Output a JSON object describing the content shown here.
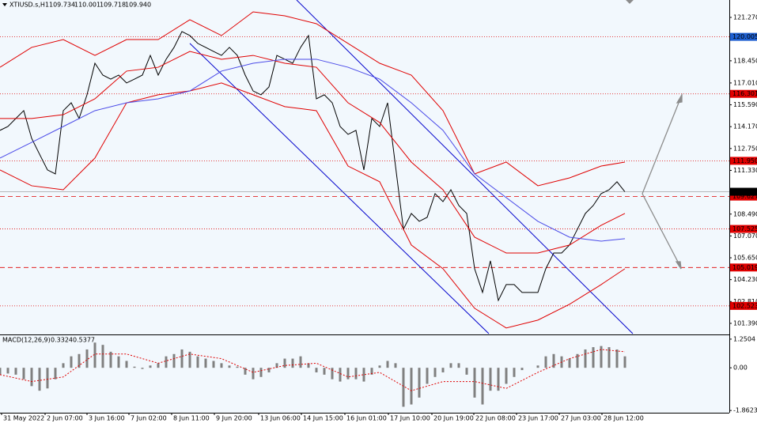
{
  "chart_data": {
    "type": "line",
    "title": "XTIUSD.s,H1",
    "quote": [
      "109.734",
      "110.001",
      "109.718",
      "109.940"
    ],
    "x": [
      0,
      1,
      2,
      3,
      4,
      5,
      6,
      7,
      8,
      9,
      10,
      11,
      12,
      13,
      14,
      15,
      16,
      17,
      18,
      19,
      20,
      21,
      22,
      23,
      24,
      25,
      26,
      27,
      28,
      29,
      30,
      31,
      32,
      33,
      34,
      35,
      36,
      37,
      38,
      39,
      40,
      41,
      42,
      43,
      44,
      45,
      46,
      47,
      48,
      49,
      50,
      51,
      52,
      53,
      54,
      55,
      56,
      57,
      58,
      59,
      60,
      61,
      62,
      63,
      64,
      65,
      66,
      67,
      68,
      69,
      70,
      71,
      72,
      73,
      74,
      75,
      76,
      77,
      78,
      79
    ],
    "xlim": [
      0,
      92.2
    ],
    "xticks": [
      {
        "value": 0.2,
        "label": "31 May 2022"
      },
      {
        "value": 5.7,
        "label": "2 Jun 07:00"
      },
      {
        "value": 11.0,
        "label": "3 Jun 16:00"
      },
      {
        "value": 16.3,
        "label": "7 Jun 02:00"
      },
      {
        "value": 21.7,
        "label": "8 Jun 11:00"
      },
      {
        "value": 27.1,
        "label": "9 Jun 20:00"
      },
      {
        "value": 32.7,
        "label": "13 Jun 06:00"
      },
      {
        "value": 38.1,
        "label": "14 Jun 15:00"
      },
      {
        "value": 43.6,
        "label": "16 Jun 01:00"
      },
      {
        "value": 49.1,
        "label": "17 Jun 10:00"
      },
      {
        "value": 54.6,
        "label": "20 Jun 19:00"
      },
      {
        "value": 59.9,
        "label": "22 Jun 08:00"
      },
      {
        "value": 65.3,
        "label": "23 Jun 17:00"
      },
      {
        "value": 70.7,
        "label": "27 Jun 03:00"
      },
      {
        "value": 76.1,
        "label": "28 Jun 12:00"
      }
    ],
    "ylim": [
      100.72,
      122.4
    ],
    "yticks": [
      {
        "value": 121.27,
        "label": "121.270"
      },
      {
        "value": 118.45,
        "label": "118.450"
      },
      {
        "value": 117.01,
        "label": "117.010"
      },
      {
        "value": 115.59,
        "label": "115.590"
      },
      {
        "value": 114.17,
        "label": "114.170"
      },
      {
        "value": 112.75,
        "label": "112.750"
      },
      {
        "value": 111.33,
        "label": "111.330"
      },
      {
        "value": 108.49,
        "label": "108.490"
      },
      {
        "value": 107.07,
        "label": "107.070"
      },
      {
        "value": 105.65,
        "label": "105.650"
      },
      {
        "value": 104.23,
        "label": "104.230"
      },
      {
        "value": 102.81,
        "label": "102.810"
      },
      {
        "value": 101.39,
        "label": "101.390"
      }
    ],
    "series": [
      {
        "color": "#000000",
        "values": [
          113.93,
          114.18,
          114.7,
          115.21,
          113.41,
          112.38,
          111.36,
          111.1,
          115.21,
          115.72,
          114.7,
          116.24,
          118.29,
          117.52,
          117.26,
          117.52,
          117.01,
          117.26,
          117.52,
          118.8,
          117.52,
          118.55,
          119.32,
          120.35,
          120.09,
          119.58,
          119.32,
          119.06,
          118.8,
          119.32,
          118.8,
          117.52,
          116.49,
          116.24,
          116.75,
          118.8,
          118.55,
          118.29,
          119.32,
          120.09,
          115.98,
          116.24,
          115.72,
          114.18,
          113.67,
          113.93,
          111.36,
          114.7,
          114.18,
          115.72,
          111.61,
          107.51,
          108.53,
          108.02,
          108.28,
          109.82,
          109.3,
          110.07,
          109.05,
          108.53,
          104.94,
          103.4,
          105.45,
          102.88,
          103.91,
          103.91,
          103.4,
          103.4,
          103.4,
          104.94,
          105.96,
          105.96,
          106.48,
          107.51,
          108.53,
          109.05,
          109.82,
          110.07,
          110.59,
          109.94
        ]
      },
      {
        "color": "#e00000",
        "x": [
          0,
          4,
          8,
          12,
          16,
          20,
          24,
          28,
          32,
          36,
          40,
          44,
          48,
          52,
          56,
          60,
          64,
          68,
          72,
          76,
          79
        ],
        "values": [
          118.03,
          119.32,
          119.83,
          118.8,
          119.83,
          119.83,
          121.12,
          120.09,
          121.63,
          121.37,
          120.86,
          119.58,
          118.29,
          117.52,
          115.21,
          111.1,
          111.87,
          110.33,
          110.84,
          111.61,
          111.87
        ]
      },
      {
        "color": "#e00000",
        "x": [
          0,
          4,
          8,
          12,
          16,
          20,
          24,
          28,
          32,
          36,
          40,
          44,
          48,
          52,
          56,
          60,
          64,
          68,
          72,
          76,
          79
        ],
        "values": [
          114.7,
          114.7,
          114.95,
          115.98,
          117.78,
          118.03,
          119.06,
          118.55,
          118.8,
          118.29,
          118.03,
          115.72,
          114.44,
          111.87,
          110.07,
          106.99,
          105.96,
          105.96,
          106.48,
          107.76,
          108.53
        ]
      },
      {
        "color": "#e00000",
        "x": [
          0,
          4,
          8,
          12,
          16,
          20,
          24,
          28,
          32,
          36,
          40,
          44,
          48,
          52,
          56,
          60,
          64,
          68,
          72,
          76,
          79
        ],
        "values": [
          111.36,
          110.33,
          110.07,
          112.13,
          115.72,
          116.24,
          116.49,
          117.01,
          116.24,
          115.47,
          115.21,
          111.61,
          110.59,
          106.48,
          104.94,
          102.37,
          101.09,
          101.6,
          102.63,
          103.91,
          104.94
        ]
      },
      {
        "color": "#4a4ae8",
        "x": [
          0,
          4,
          8,
          12,
          16,
          20,
          24,
          28,
          32,
          36,
          40,
          44,
          48,
          52,
          56,
          60,
          64,
          68,
          72,
          76,
          79
        ],
        "values": [
          112.13,
          113.15,
          114.18,
          115.21,
          115.72,
          115.98,
          116.49,
          117.78,
          118.29,
          118.55,
          118.55,
          118.03,
          117.26,
          115.72,
          113.93,
          111.1,
          109.56,
          108.02,
          106.99,
          106.73,
          106.89
        ]
      }
    ],
    "trendlines": [
      {
        "color": "#0000cc",
        "x": [
          37.5,
          80
        ],
        "values": [
          122.4,
          100.72
        ]
      },
      {
        "color": "#0000cc",
        "x": [
          24,
          61.8
        ],
        "values": [
          119.58,
          100.72
        ]
      }
    ],
    "levels": [
      {
        "value": 120.005,
        "label": "120.005",
        "style": "dotted",
        "color": "#e00000",
        "label_color": "#1e5fd0"
      },
      {
        "value": 116.301,
        "label": "116.301",
        "style": "dotted",
        "color": "#e00000",
        "label_color": "#e00000"
      },
      {
        "value": 111.95,
        "label": "111.950",
        "style": "dotted",
        "color": "#e00000",
        "label_color": "#e00000"
      },
      {
        "value": 109.627,
        "label": "109.627",
        "style": "dashed",
        "color": "#e00000",
        "label_color": "#e00000"
      },
      {
        "value": 107.525,
        "label": "107.525",
        "style": "dotted",
        "color": "#e00000",
        "label_color": "#e00000"
      },
      {
        "value": 105.019,
        "label": "105.019",
        "style": "dashed",
        "color": "#e00000",
        "label_color": "#e00000"
      },
      {
        "value": 102.523,
        "label": "102.523",
        "style": "dotted",
        "color": "#e00000",
        "label_color": "#e00000"
      }
    ],
    "current": {
      "value": 109.94,
      "label": "109.940",
      "color": "#000000"
    },
    "macd": {
      "title": "MACD(12,26,9)",
      "readings": [
        0.3324,
        0.5377
      ],
      "ylim": [
        -1.96,
        1.42
      ],
      "yticks": [
        1.2504,
        {
          "value": 0,
          "label": "0.00"
        },
        -1.8623
      ],
      "histogram": {
        "color": "#808080",
        "values": [
          -0.3,
          -0.25,
          -0.3,
          -0.5,
          -0.8,
          -1.0,
          -0.9,
          -0.5,
          0.2,
          0.5,
          0.6,
          0.8,
          1.1,
          1.0,
          0.7,
          0.5,
          0.3,
          0.05,
          -0.05,
          0.1,
          0.2,
          0.5,
          0.6,
          0.8,
          0.7,
          0.5,
          0.4,
          0.3,
          0.2,
          0.1,
          0.05,
          -0.3,
          -0.5,
          -0.4,
          -0.2,
          0.2,
          0.4,
          0.4,
          0.5,
          0.2,
          -0.2,
          -0.3,
          -0.5,
          -0.6,
          -0.5,
          -0.5,
          -0.6,
          -0.3,
          0.1,
          0.3,
          0.2,
          -1.7,
          -1.6,
          -1.3,
          -0.7,
          -0.4,
          -0.2,
          0.2,
          0.2,
          -0.3,
          -1.3,
          -1.6,
          -1.0,
          -1.0,
          -0.7,
          -0.4,
          -0.1,
          0.0,
          0.1,
          0.5,
          0.6,
          0.5,
          0.4,
          0.6,
          0.8,
          0.9,
          0.95,
          0.9,
          0.8,
          0.5
        ]
      },
      "signal": {
        "color": "#e00000",
        "x": [
          0,
          4,
          8,
          12,
          16,
          20,
          24,
          28,
          32,
          36,
          40,
          44,
          48,
          52,
          56,
          60,
          64,
          68,
          72,
          76,
          79
        ],
        "values": [
          -0.3,
          -0.6,
          -0.4,
          0.6,
          0.6,
          0.2,
          0.6,
          0.4,
          -0.2,
          0.1,
          0.2,
          -0.4,
          -0.2,
          -1.0,
          -0.6,
          -0.6,
          -0.9,
          -0.2,
          0.4,
          0.8,
          0.7
        ]
      }
    }
  }
}
